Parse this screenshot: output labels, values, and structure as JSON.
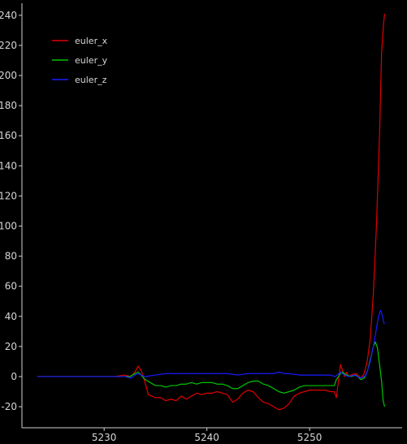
{
  "chart_data": {
    "type": "line",
    "title": "",
    "xlabel": "",
    "ylabel": "",
    "xlim": [
      5222,
      5259
    ],
    "ylim": [
      -34,
      248
    ],
    "grid": false,
    "legend_placement": "top-left",
    "background": "#000000",
    "x_ticks": [
      5230,
      5240,
      5250
    ],
    "y_ticks": [
      -20,
      0,
      20,
      40,
      60,
      80,
      100,
      120,
      140,
      160,
      180,
      200,
      220,
      240
    ],
    "series": [
      {
        "name": "euler_x",
        "color": "#e00000",
        "points": [
          [
            5223.5,
            0
          ],
          [
            5230,
            0
          ],
          [
            5231,
            0
          ],
          [
            5232,
            1
          ],
          [
            5232.6,
            0
          ],
          [
            5233,
            3
          ],
          [
            5233.3,
            7
          ],
          [
            5233.6,
            4
          ],
          [
            5233.9,
            -2
          ],
          [
            5234.3,
            -12
          ],
          [
            5235,
            -14
          ],
          [
            5235.5,
            -14
          ],
          [
            5236,
            -16
          ],
          [
            5236.5,
            -15
          ],
          [
            5237,
            -16
          ],
          [
            5237.5,
            -13
          ],
          [
            5238,
            -15
          ],
          [
            5238.5,
            -13
          ],
          [
            5239,
            -11
          ],
          [
            5239.5,
            -12
          ],
          [
            5240,
            -11
          ],
          [
            5240.5,
            -11
          ],
          [
            5241,
            -10
          ],
          [
            5241.5,
            -11
          ],
          [
            5242,
            -12
          ],
          [
            5242.5,
            -17
          ],
          [
            5243,
            -15
          ],
          [
            5243.5,
            -11
          ],
          [
            5244,
            -9
          ],
          [
            5244.5,
            -10
          ],
          [
            5245,
            -14
          ],
          [
            5245.5,
            -17
          ],
          [
            5246,
            -18
          ],
          [
            5246.5,
            -20
          ],
          [
            5247,
            -22
          ],
          [
            5247.5,
            -21
          ],
          [
            5248,
            -18
          ],
          [
            5248.5,
            -13
          ],
          [
            5249,
            -11
          ],
          [
            5249.5,
            -10
          ],
          [
            5250,
            -9
          ],
          [
            5250.5,
            -9
          ],
          [
            5251,
            -9
          ],
          [
            5251.5,
            -9
          ],
          [
            5252,
            -10
          ],
          [
            5252.4,
            -10
          ],
          [
            5252.6,
            -14
          ],
          [
            5252.8,
            -3
          ],
          [
            5253,
            8
          ],
          [
            5253.2,
            4
          ],
          [
            5253.4,
            0
          ],
          [
            5253.6,
            3
          ],
          [
            5253.8,
            0
          ],
          [
            5254,
            1
          ],
          [
            5254.5,
            2
          ],
          [
            5255,
            -1
          ],
          [
            5255.3,
            2
          ],
          [
            5255.6,
            10
          ],
          [
            5255.9,
            25
          ],
          [
            5256.2,
            55
          ],
          [
            5256.5,
            100
          ],
          [
            5256.8,
            160
          ],
          [
            5257,
            215
          ],
          [
            5257.2,
            235
          ],
          [
            5257.3,
            241
          ]
        ]
      },
      {
        "name": "euler_y",
        "color": "#00c400",
        "points": [
          [
            5223.5,
            0
          ],
          [
            5230,
            0
          ],
          [
            5231,
            0
          ],
          [
            5232,
            0
          ],
          [
            5232.5,
            0
          ],
          [
            5233,
            2
          ],
          [
            5233.3,
            3
          ],
          [
            5233.6,
            1
          ],
          [
            5234,
            -2
          ],
          [
            5234.5,
            -4
          ],
          [
            5235,
            -6
          ],
          [
            5235.5,
            -6
          ],
          [
            5236,
            -7
          ],
          [
            5236.5,
            -6
          ],
          [
            5237,
            -6
          ],
          [
            5237.5,
            -5
          ],
          [
            5238,
            -5
          ],
          [
            5238.5,
            -4
          ],
          [
            5239,
            -5
          ],
          [
            5239.5,
            -4
          ],
          [
            5240,
            -4
          ],
          [
            5240.5,
            -4
          ],
          [
            5241,
            -5
          ],
          [
            5241.5,
            -5
          ],
          [
            5242,
            -6
          ],
          [
            5242.5,
            -8
          ],
          [
            5243,
            -8
          ],
          [
            5243.5,
            -6
          ],
          [
            5244,
            -4
          ],
          [
            5244.5,
            -3
          ],
          [
            5245,
            -3
          ],
          [
            5245.5,
            -5
          ],
          [
            5246,
            -6
          ],
          [
            5246.5,
            -8
          ],
          [
            5247,
            -10
          ],
          [
            5247.5,
            -11
          ],
          [
            5248,
            -10
          ],
          [
            5248.5,
            -9
          ],
          [
            5249,
            -7
          ],
          [
            5249.5,
            -6
          ],
          [
            5250,
            -6
          ],
          [
            5250.5,
            -6
          ],
          [
            5251,
            -6
          ],
          [
            5251.5,
            -6
          ],
          [
            5252,
            -6
          ],
          [
            5252.4,
            -6
          ],
          [
            5252.6,
            -2
          ],
          [
            5252.8,
            0
          ],
          [
            5253,
            2
          ],
          [
            5253.2,
            3
          ],
          [
            5253.4,
            2
          ],
          [
            5253.6,
            1
          ],
          [
            5254,
            0
          ],
          [
            5254.5,
            1
          ],
          [
            5255,
            -2
          ],
          [
            5255.3,
            -1
          ],
          [
            5255.6,
            3
          ],
          [
            5256,
            14
          ],
          [
            5256.2,
            20
          ],
          [
            5256.4,
            23
          ],
          [
            5256.6,
            19
          ],
          [
            5256.8,
            8
          ],
          [
            5257,
            -3
          ],
          [
            5257.15,
            -16
          ],
          [
            5257.3,
            -20
          ]
        ]
      },
      {
        "name": "euler_z",
        "color": "#1a1aff",
        "points": [
          [
            5223.5,
            0
          ],
          [
            5230,
            0
          ],
          [
            5231,
            0
          ],
          [
            5232,
            0
          ],
          [
            5232.6,
            -1
          ],
          [
            5233,
            1
          ],
          [
            5233.3,
            2
          ],
          [
            5233.6,
            1
          ],
          [
            5234,
            0
          ],
          [
            5235,
            1
          ],
          [
            5236,
            2
          ],
          [
            5237,
            2
          ],
          [
            5238,
            2
          ],
          [
            5239,
            2
          ],
          [
            5240,
            2
          ],
          [
            5241,
            2
          ],
          [
            5242,
            2
          ],
          [
            5243,
            1
          ],
          [
            5244,
            2
          ],
          [
            5245,
            2
          ],
          [
            5246,
            2
          ],
          [
            5246.5,
            2
          ],
          [
            5247,
            3
          ],
          [
            5247.5,
            2
          ],
          [
            5248,
            2
          ],
          [
            5249,
            1
          ],
          [
            5250,
            1
          ],
          [
            5251,
            1
          ],
          [
            5252,
            1
          ],
          [
            5252.5,
            0
          ],
          [
            5253,
            3
          ],
          [
            5253.4,
            1
          ],
          [
            5253.8,
            0
          ],
          [
            5254.3,
            1
          ],
          [
            5255,
            -1
          ],
          [
            5255.5,
            1
          ],
          [
            5255.9,
            10
          ],
          [
            5256.2,
            20
          ],
          [
            5256.5,
            32
          ],
          [
            5256.7,
            40
          ],
          [
            5256.9,
            44
          ],
          [
            5257.1,
            40
          ],
          [
            5257.2,
            36
          ],
          [
            5257.3,
            35
          ]
        ]
      }
    ]
  }
}
